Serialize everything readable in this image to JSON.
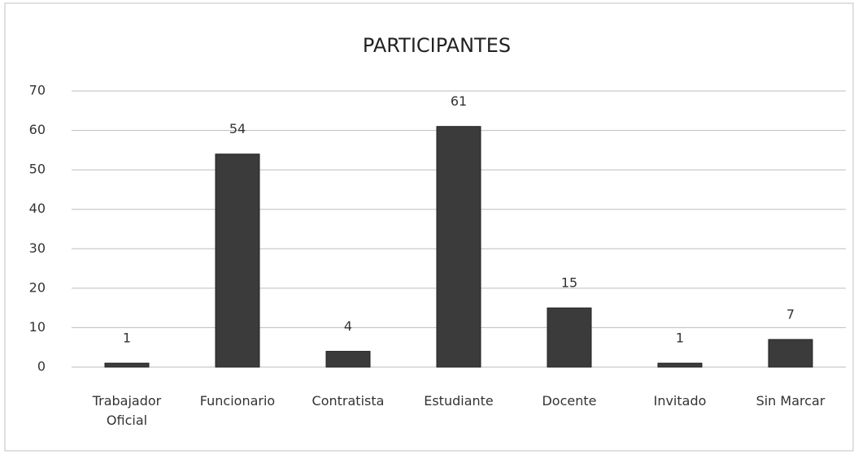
{
  "chart_data": {
    "type": "bar",
    "title": "PARTICIPANTES",
    "categories": [
      "Trabajador Oficial",
      "Funcionario",
      "Contratista",
      "Estudiante",
      "Docente",
      "Invitado",
      "Sin Marcar"
    ],
    "values": [
      1,
      54,
      4,
      61,
      15,
      1,
      7
    ],
    "color": "#3b3b3b",
    "ylim": [
      0,
      70
    ],
    "yticks": [
      0,
      10,
      20,
      30,
      40,
      50,
      60,
      70
    ],
    "grid": true
  }
}
